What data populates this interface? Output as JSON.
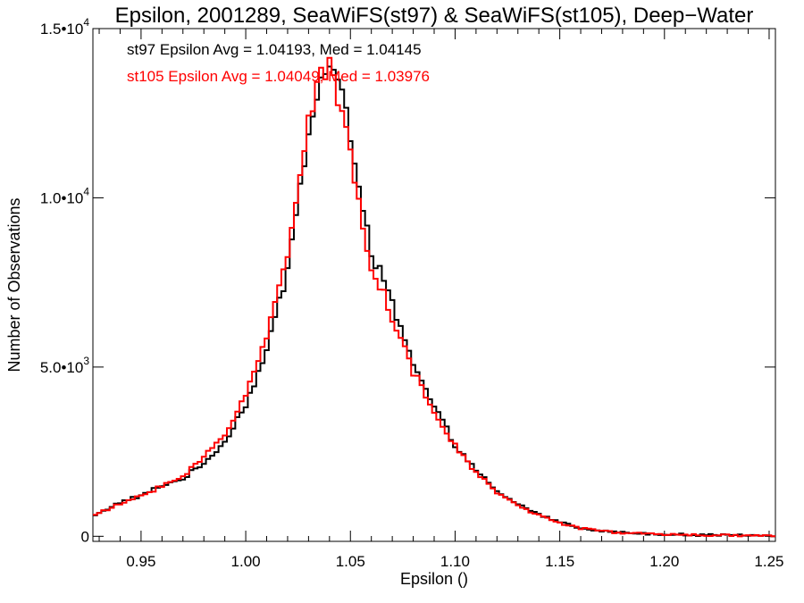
{
  "chart_data": {
    "type": "histogram-step",
    "title": "Epsilon, 2001289, SeaWiFS(st97) & SeaWiFS(st105), Deep−Water",
    "xlabel": "Epsilon ()",
    "ylabel": "Number of Observations",
    "xlim": [
      0.927,
      1.253
    ],
    "ylim": [
      -150,
      15000
    ],
    "x_ticks": [
      "0.95",
      "1.00",
      "1.05",
      "1.10",
      "1.15",
      "1.20",
      "1.25"
    ],
    "y_ticks": [
      {
        "value": 0,
        "mant": "0",
        "exp": ""
      },
      {
        "value": 5000,
        "mant": "5.0•10",
        "exp": "3"
      },
      {
        "value": 10000,
        "mant": "1.0•10",
        "exp": "4"
      },
      {
        "value": 15000,
        "mant": "1.5•10",
        "exp": "4"
      }
    ],
    "grid": false,
    "bin_width": 0.002,
    "annotations": [
      {
        "text": "st97 Epsilon Avg = 1.04193, Med = 1.04145",
        "color": "#000000"
      },
      {
        "text": "st105 Epsilon Avg = 1.04049, Med = 1.03976",
        "color": "#ff0000"
      }
    ],
    "series": [
      {
        "color": "#000000",
        "points": [
          [
            0.927,
            600
          ],
          [
            0.94,
            1000
          ],
          [
            0.95,
            1200
          ],
          [
            0.96,
            1500
          ],
          [
            0.97,
            1700
          ],
          [
            0.98,
            2150
          ],
          [
            0.99,
            2800
          ],
          [
            1.0,
            3900
          ],
          [
            1.01,
            5450
          ],
          [
            1.02,
            7900
          ],
          [
            1.025,
            9900
          ],
          [
            1.03,
            11900
          ],
          [
            1.035,
            13300
          ],
          [
            1.04,
            13900
          ],
          [
            1.045,
            13250
          ],
          [
            1.05,
            11800
          ],
          [
            1.055,
            10200
          ],
          [
            1.06,
            8400
          ],
          [
            1.07,
            6850
          ],
          [
            1.08,
            5050
          ],
          [
            1.09,
            3800
          ],
          [
            1.1,
            2700
          ],
          [
            1.11,
            1950
          ],
          [
            1.12,
            1300
          ],
          [
            1.13,
            950
          ],
          [
            1.14,
            650
          ],
          [
            1.15,
            420
          ],
          [
            1.16,
            250
          ],
          [
            1.17,
            160
          ],
          [
            1.18,
            110
          ],
          [
            1.2,
            60
          ],
          [
            1.22,
            35
          ],
          [
            1.253,
            20
          ]
        ]
      },
      {
        "color": "#ff0000",
        "points": [
          [
            0.927,
            600
          ],
          [
            0.94,
            950
          ],
          [
            0.95,
            1200
          ],
          [
            0.96,
            1500
          ],
          [
            0.97,
            1750
          ],
          [
            0.98,
            2350
          ],
          [
            0.99,
            3000
          ],
          [
            1.0,
            4200
          ],
          [
            1.01,
            5850
          ],
          [
            1.02,
            8450
          ],
          [
            1.025,
            10400
          ],
          [
            1.03,
            12300
          ],
          [
            1.035,
            13500
          ],
          [
            1.04,
            13800
          ],
          [
            1.045,
            12700
          ],
          [
            1.05,
            11300
          ],
          [
            1.055,
            9600
          ],
          [
            1.06,
            8000
          ],
          [
            1.07,
            6500
          ],
          [
            1.08,
            4850
          ],
          [
            1.09,
            3650
          ],
          [
            1.1,
            2650
          ],
          [
            1.11,
            1900
          ],
          [
            1.12,
            1280
          ],
          [
            1.13,
            920
          ],
          [
            1.14,
            620
          ],
          [
            1.15,
            400
          ],
          [
            1.16,
            240
          ],
          [
            1.17,
            150
          ],
          [
            1.18,
            100
          ],
          [
            1.2,
            55
          ],
          [
            1.22,
            30
          ],
          [
            1.253,
            15
          ]
        ]
      }
    ]
  }
}
